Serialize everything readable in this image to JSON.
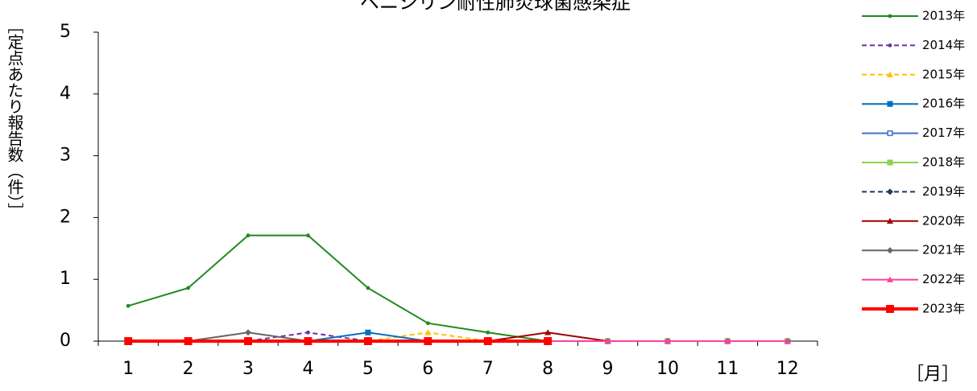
{
  "chart_data": {
    "type": "line",
    "title": "ペニシリン耐性肺炎球菌感染症",
    "y_label": "［定点あたり報告数（件）］",
    "x_label": "［月］",
    "categories": [
      "1",
      "2",
      "3",
      "4",
      "5",
      "6",
      "7",
      "8",
      "9",
      "10",
      "11",
      "12"
    ],
    "ylim": [
      0,
      5
    ],
    "yticks": [
      0,
      1,
      2,
      3,
      4,
      5
    ],
    "grid": false,
    "legend": "right",
    "series": [
      {
        "name": "2013年",
        "color": "#1e8a1e",
        "marker": "circle",
        "dash": false,
        "width": 2,
        "values": [
          0.57,
          0.86,
          1.71,
          1.71,
          0.86,
          0.29,
          0.14,
          0,
          0,
          0,
          0,
          0
        ]
      },
      {
        "name": "2014年",
        "color": "#7030a0",
        "marker": "circle",
        "dash": true,
        "width": 2,
        "values": [
          0,
          0,
          0,
          0.14,
          0,
          0,
          0,
          0,
          0,
          0,
          0,
          0
        ]
      },
      {
        "name": "2015年",
        "color": "#ffc000",
        "marker": "triangle",
        "dash": true,
        "width": 2,
        "values": [
          0,
          0,
          0,
          0,
          0,
          0.14,
          0,
          0,
          0,
          0,
          0,
          0
        ]
      },
      {
        "name": "2016年",
        "color": "#0070c0",
        "marker": "square",
        "dash": false,
        "width": 2,
        "values": [
          0,
          0,
          0,
          0,
          0.14,
          0,
          0,
          0,
          0,
          0,
          0,
          0
        ]
      },
      {
        "name": "2017年",
        "color": "#4472c4",
        "marker": "open-square",
        "dash": false,
        "width": 2,
        "values": [
          0,
          0,
          0,
          0,
          0,
          0,
          0,
          0,
          0,
          0,
          0,
          0
        ]
      },
      {
        "name": "2018年",
        "color": "#92d050",
        "marker": "square",
        "dash": false,
        "width": 2,
        "values": [
          0,
          0,
          0,
          0,
          0,
          0,
          0,
          0,
          0,
          0,
          0,
          0
        ]
      },
      {
        "name": "2019年",
        "color": "#1f3864",
        "marker": "diamond",
        "dash": true,
        "width": 2,
        "values": [
          0,
          0,
          0,
          0,
          0,
          0,
          0,
          0,
          0,
          0,
          0,
          0
        ]
      },
      {
        "name": "2020年",
        "color": "#a00000",
        "marker": "triangle",
        "dash": false,
        "width": 2,
        "values": [
          0,
          0,
          0,
          0,
          0,
          0,
          0,
          0.14,
          0,
          0,
          0,
          0
        ]
      },
      {
        "name": "2021年",
        "color": "#666666",
        "marker": "diamond",
        "dash": false,
        "width": 2,
        "values": [
          0,
          0,
          0.14,
          0,
          0,
          0,
          0,
          0,
          0,
          0,
          0,
          0
        ]
      },
      {
        "name": "2022年",
        "color": "#ff3fa0",
        "marker": "triangle",
        "dash": false,
        "width": 2,
        "values": [
          0,
          0,
          0,
          0,
          0,
          0,
          0,
          0,
          0,
          0,
          0,
          0
        ]
      },
      {
        "name": "2023年",
        "color": "#ff0000",
        "marker": "square",
        "dash": false,
        "width": 4,
        "values": [
          0,
          0,
          0,
          0,
          0,
          0,
          0,
          0,
          null,
          null,
          null,
          null
        ]
      }
    ]
  }
}
